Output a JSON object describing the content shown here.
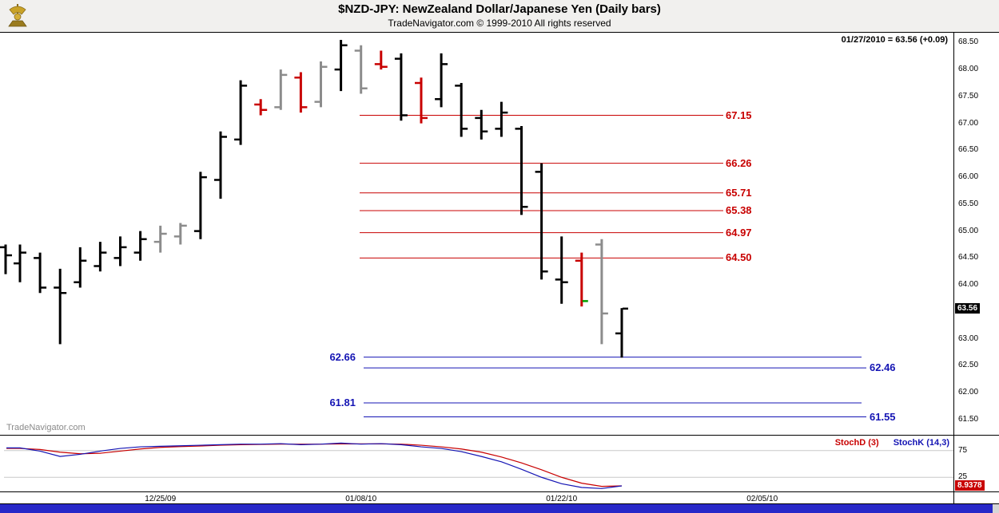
{
  "header": {
    "title": "$NZD-JPY:  NewZealand Dollar/Japanese Yen  (Daily bars)",
    "subtitle": "TradeNavigator.com © 1999-2010 All rights reserved",
    "quote": "01/27/2010 = 63.56 (+0.09)"
  },
  "watermark": "TradeNavigator.com",
  "colors": {
    "red": "#c80000",
    "blue": "#1414b4",
    "gray": "#8c8c8c",
    "green": "#00a000",
    "black": "#000000",
    "grid": "#c8c8c8",
    "scrollbar": "#2828c8"
  },
  "chart_data": {
    "type": "bar",
    "style": "ohlc-daily-bars",
    "title": "$NZD-JPY NewZealand Dollar/Japanese Yen (Daily bars)",
    "price_axis": {
      "ticks": [
        68.5,
        68.0,
        67.5,
        67.0,
        66.5,
        66.0,
        65.5,
        65.0,
        64.5,
        64.0,
        63.5,
        63.0,
        62.5,
        62.0,
        61.5
      ],
      "last_price": 63.56,
      "last_label": "63.56"
    },
    "date_ticks": [
      {
        "label": "12/25/09",
        "bar": 7
      },
      {
        "label": "01/08/10",
        "bar": 17
      },
      {
        "label": "01/22/10",
        "bar": 27
      },
      {
        "label": "02/05/10",
        "bar": 37
      }
    ],
    "partial_bar": {
      "o": 64.7,
      "h": 64.75,
      "l": 64.2,
      "c": 64.55,
      "color": "black"
    },
    "bars": [
      {
        "o": 64.4,
        "h": 64.75,
        "l": 64.05,
        "c": 64.6,
        "color": "black"
      },
      {
        "o": 64.5,
        "h": 64.6,
        "l": 63.85,
        "c": 63.95,
        "color": "black"
      },
      {
        "o": 63.95,
        "h": 64.3,
        "l": 62.9,
        "c": 63.85,
        "color": "black"
      },
      {
        "o": 64.05,
        "h": 64.7,
        "l": 63.95,
        "c": 64.45,
        "color": "black"
      },
      {
        "o": 64.35,
        "h": 64.8,
        "l": 64.25,
        "c": 64.6,
        "color": "black"
      },
      {
        "o": 64.5,
        "h": 64.9,
        "l": 64.35,
        "c": 64.7,
        "color": "black"
      },
      {
        "o": 64.6,
        "h": 65.0,
        "l": 64.45,
        "c": 64.85,
        "color": "black"
      },
      {
        "o": 64.8,
        "h": 65.1,
        "l": 64.6,
        "c": 64.95,
        "color": "gray"
      },
      {
        "o": 64.9,
        "h": 65.15,
        "l": 64.75,
        "c": 65.1,
        "color": "gray"
      },
      {
        "o": 65.0,
        "h": 66.1,
        "l": 64.85,
        "c": 66.0,
        "color": "black"
      },
      {
        "o": 65.95,
        "h": 66.85,
        "l": 65.6,
        "c": 66.75,
        "color": "black"
      },
      {
        "o": 66.7,
        "h": 67.8,
        "l": 66.6,
        "c": 67.7,
        "color": "black"
      },
      {
        "o": 67.35,
        "h": 67.45,
        "l": 67.15,
        "c": 67.25,
        "color": "red"
      },
      {
        "o": 67.3,
        "h": 68.0,
        "l": 67.25,
        "c": 67.9,
        "color": "gray"
      },
      {
        "o": 67.85,
        "h": 67.95,
        "l": 67.2,
        "c": 67.3,
        "color": "red"
      },
      {
        "o": 67.4,
        "h": 68.15,
        "l": 67.3,
        "c": 68.05,
        "color": "gray"
      },
      {
        "o": 68.0,
        "h": 68.55,
        "l": 67.6,
        "c": 68.45,
        "color": "black"
      },
      {
        "o": 68.35,
        "h": 68.45,
        "l": 67.55,
        "c": 67.65,
        "color": "gray"
      },
      {
        "o": 68.1,
        "h": 68.35,
        "l": 68.0,
        "c": 68.05,
        "color": "red"
      },
      {
        "o": 68.2,
        "h": 68.3,
        "l": 67.05,
        "c": 67.15,
        "color": "black"
      },
      {
        "o": 67.75,
        "h": 67.85,
        "l": 67.0,
        "c": 67.1,
        "color": "red"
      },
      {
        "o": 67.45,
        "h": 68.3,
        "l": 67.3,
        "c": 68.1,
        "color": "black"
      },
      {
        "o": 67.7,
        "h": 67.75,
        "l": 66.75,
        "c": 66.9,
        "color": "black"
      },
      {
        "o": 67.1,
        "h": 67.25,
        "l": 66.7,
        "c": 66.85,
        "color": "black"
      },
      {
        "o": 66.9,
        "h": 67.4,
        "l": 66.75,
        "c": 67.2,
        "color": "black"
      },
      {
        "o": 66.9,
        "h": 66.95,
        "l": 65.3,
        "c": 65.45,
        "color": "black"
      },
      {
        "o": 66.1,
        "h": 66.26,
        "l": 64.1,
        "c": 64.25,
        "color": "black"
      },
      {
        "o": 64.1,
        "h": 64.9,
        "l": 63.65,
        "c": 64.05,
        "color": "black"
      },
      {
        "o": 64.45,
        "h": 64.6,
        "l": 63.6,
        "c": 63.7,
        "color": "red",
        "close_color": "green"
      },
      {
        "o": 64.75,
        "h": 64.85,
        "l": 62.9,
        "c": 63.47,
        "color": "gray"
      },
      {
        "o": 63.1,
        "h": 63.57,
        "l": 62.65,
        "c": 63.56,
        "color": "black"
      }
    ],
    "levels": {
      "resistance": [
        {
          "price": 67.15
        },
        {
          "price": 66.26
        },
        {
          "price": 65.71
        },
        {
          "price": 65.38
        },
        {
          "price": 64.97
        },
        {
          "price": 64.5
        }
      ],
      "support": [
        {
          "price": 62.66,
          "label_side": "left"
        },
        {
          "price": 62.46,
          "label_side": "right"
        },
        {
          "price": 61.81,
          "label_side": "left"
        },
        {
          "price": 61.55,
          "label_side": "right"
        }
      ]
    },
    "stochastic": {
      "d_label": "StochD (3)",
      "k_label": "StochK (14,3)",
      "last_value": "8.9378",
      "ticks": [
        75,
        25
      ],
      "k": [
        80,
        74,
        64,
        68,
        74,
        79,
        82,
        83,
        84,
        85,
        86,
        87,
        87,
        88,
        86,
        87,
        89,
        87,
        88,
        86,
        82,
        79,
        73,
        64,
        54,
        40,
        25,
        13,
        6,
        4,
        9
      ],
      "d": [
        79,
        77,
        72,
        69,
        70,
        74,
        78,
        81,
        82.5,
        83.5,
        85,
        86,
        86.5,
        87,
        87,
        87,
        87.5,
        87.5,
        87.5,
        87,
        85,
        82,
        78,
        72,
        63,
        52,
        39,
        25,
        14,
        8,
        8.94
      ]
    }
  }
}
